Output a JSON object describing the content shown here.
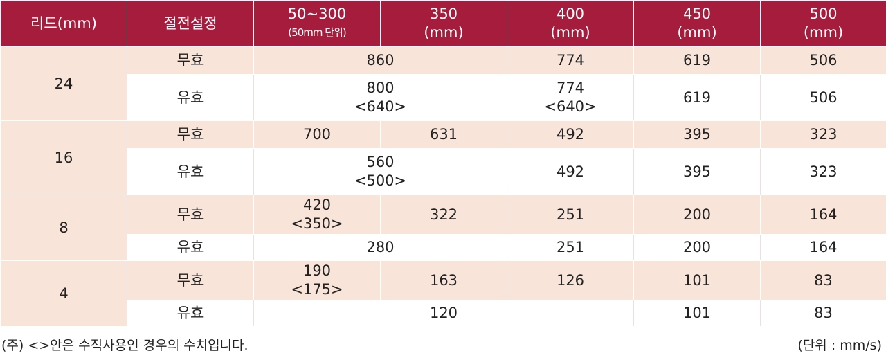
{
  "table": {
    "headers": {
      "lead": "리드(mm)",
      "cutoff": "절전설정",
      "c50_300_main": "50~300",
      "c50_300_sub": "(50mm 단위)",
      "c350_a": "350",
      "c350_b": "(mm)",
      "c400_a": "400",
      "c400_b": "(mm)",
      "c450_a": "450",
      "c450_b": "(mm)",
      "c500_a": "500",
      "c500_b": "(mm)"
    },
    "groups": [
      {
        "lead": "24",
        "invalid": {
          "label": "무효",
          "c50_350": "860",
          "c400": "774",
          "c450": "619",
          "c500": "506"
        },
        "valid": {
          "label": "유효",
          "c50_350_a": "800",
          "c50_350_b": "<640>",
          "c400_a": "774",
          "c400_b": "<640>",
          "c450": "619",
          "c500": "506"
        }
      },
      {
        "lead": "16",
        "invalid": {
          "label": "무효",
          "c50_300": "700",
          "c350": "631",
          "c400": "492",
          "c450": "395",
          "c500": "323"
        },
        "valid": {
          "label": "유효",
          "c50_350_a": "560",
          "c50_350_b": "<500>",
          "c400": "492",
          "c450": "395",
          "c500": "323"
        }
      },
      {
        "lead": "8",
        "invalid": {
          "label": "무효",
          "c50_300_a": "420",
          "c50_300_b": "<350>",
          "c350": "322",
          "c400": "251",
          "c450": "200",
          "c500": "164"
        },
        "valid": {
          "label": "유효",
          "c50_350": "280",
          "c400": "251",
          "c450": "200",
          "c500": "164"
        }
      },
      {
        "lead": "4",
        "invalid": {
          "label": "무효",
          "c50_300_a": "190",
          "c50_300_b": "<175>",
          "c350": "163",
          "c400": "126",
          "c450": "101",
          "c500": "83"
        },
        "valid": {
          "label": "유효",
          "c50_400": "120",
          "c450": "101",
          "c500": "83"
        }
      }
    ]
  },
  "footer": {
    "note": "(주) <>안은 수직사용인 경우의 수치입니다.",
    "unit": "(단위 : mm/s)"
  },
  "colors": {
    "header": "#a61c3c",
    "shade": "#f8e4d9"
  }
}
